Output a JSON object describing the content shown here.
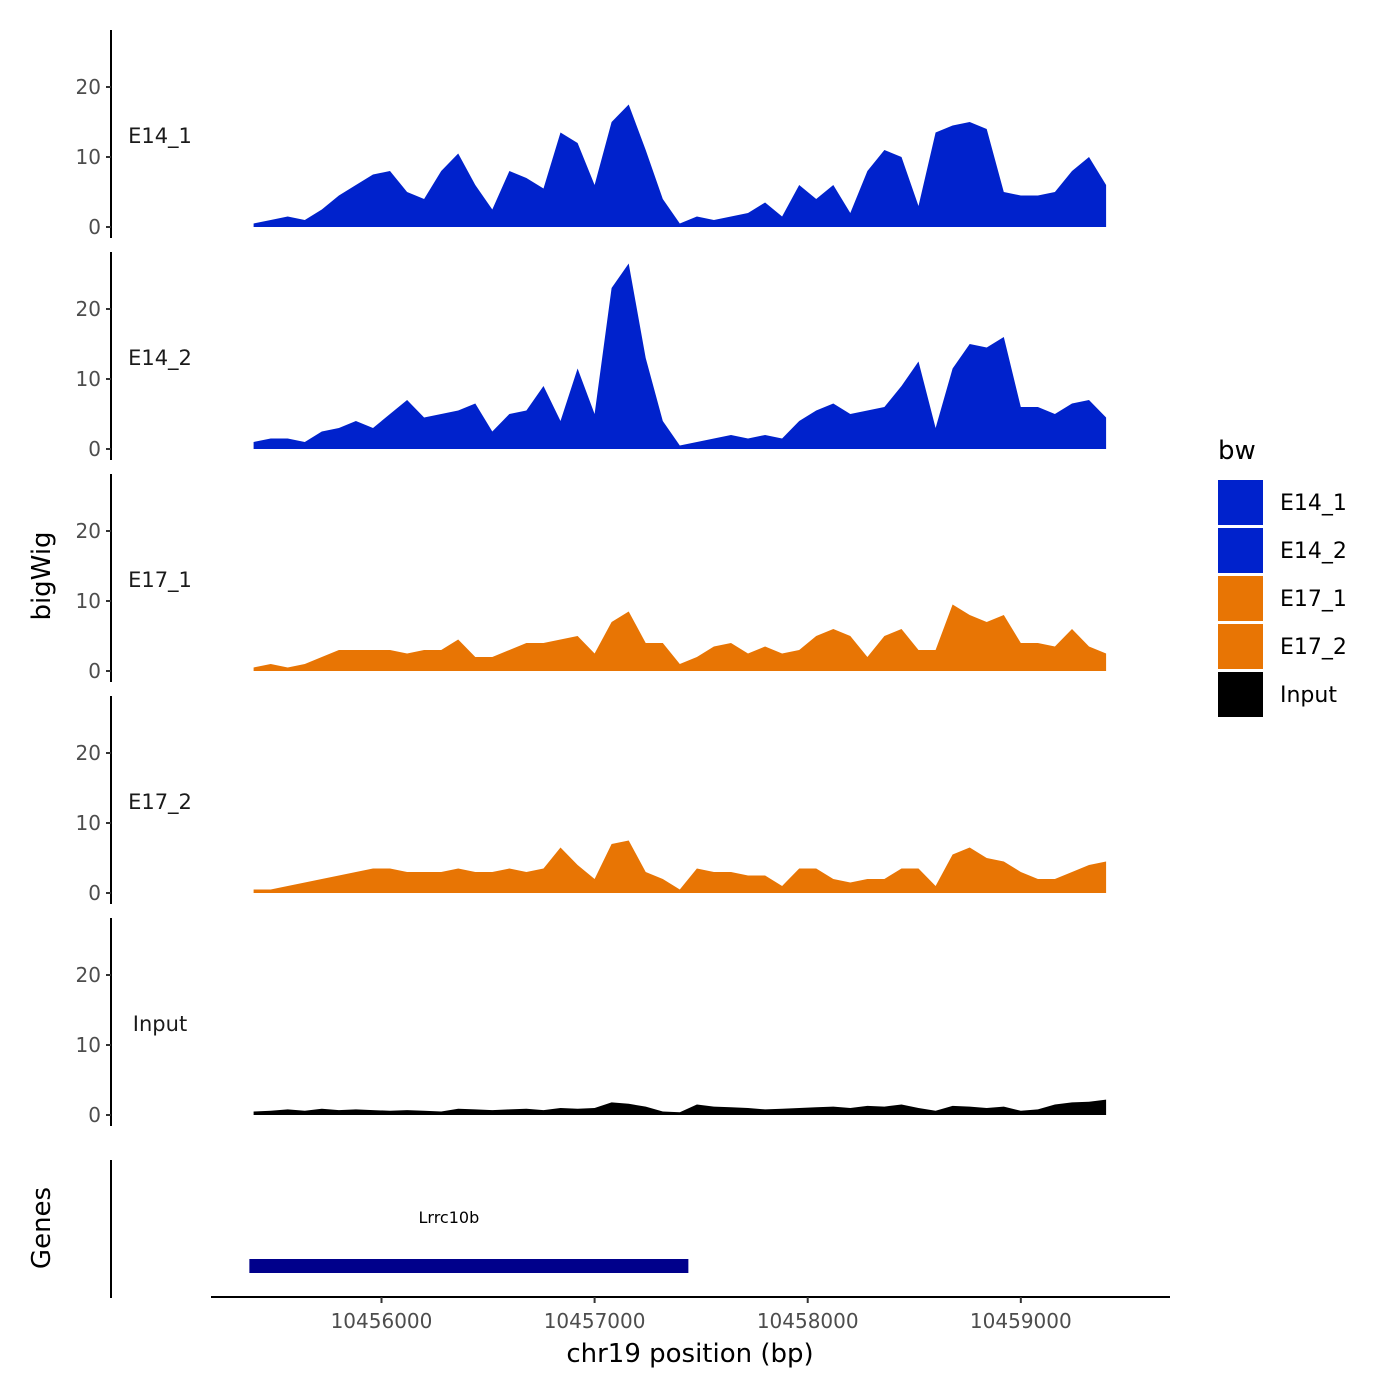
{
  "chart_data": {
    "type": "area",
    "x_range": [
      10455200,
      10459700
    ],
    "x_ticks": [
      10456000,
      10457000,
      10458000,
      10459000
    ],
    "x_tick_labels": [
      "10456000",
      "10457000",
      "10458000",
      "10459000"
    ],
    "xlabel": "chr19 position (bp)",
    "ylabel": "bigWig",
    "genes_label": "Genes",
    "y_range": [
      0,
      29
    ],
    "y_ticks": [
      0,
      10,
      20
    ],
    "y_tick_labels": [
      "0",
      "10",
      "20"
    ],
    "legend_title": "bw",
    "x": [
      10455400,
      10455480,
      10455560,
      10455640,
      10455720,
      10455800,
      10455880,
      10455960,
      10456040,
      10456120,
      10456200,
      10456280,
      10456360,
      10456440,
      10456520,
      10456600,
      10456680,
      10456760,
      10456840,
      10456920,
      10457000,
      10457080,
      10457160,
      10457240,
      10457320,
      10457400,
      10457480,
      10457560,
      10457640,
      10457720,
      10457800,
      10457880,
      10457960,
      10458040,
      10458120,
      10458200,
      10458280,
      10458360,
      10458440,
      10458520,
      10458600,
      10458680,
      10458760,
      10458840,
      10458920,
      10459000,
      10459080,
      10459160,
      10459240,
      10459320,
      10459400
    ],
    "series": [
      {
        "name": "E14_1",
        "color": "#0022CC",
        "values": [
          0.5,
          1,
          1.5,
          1,
          2.5,
          4.5,
          6,
          7.5,
          8,
          5,
          4,
          8,
          10.5,
          6,
          2.5,
          8,
          7,
          5.5,
          13.5,
          12,
          6,
          15,
          17.5,
          11,
          4,
          0.5,
          1.5,
          1,
          1.5,
          2,
          3.5,
          1.5,
          6,
          4,
          6,
          2,
          8,
          11,
          10,
          3,
          13.5,
          14.5,
          15,
          14,
          5,
          4.5,
          4.5,
          5,
          8,
          10,
          6
        ]
      },
      {
        "name": "E14_2",
        "color": "#0022CC",
        "values": [
          1,
          1.5,
          1.5,
          1,
          2.5,
          3,
          4,
          3,
          5,
          7,
          4.5,
          5,
          5.5,
          6.5,
          2.5,
          5,
          5.5,
          9,
          4,
          11.5,
          5,
          23,
          26.5,
          13,
          4,
          0.5,
          1,
          1.5,
          2,
          1.5,
          2,
          1.5,
          4,
          5.5,
          6.5,
          5,
          5.5,
          6,
          9,
          12.5,
          3,
          11.5,
          15,
          14.5,
          16,
          6,
          6,
          5,
          6.5,
          7,
          4.5
        ]
      },
      {
        "name": "E17_1",
        "color": "#E87504",
        "values": [
          0.5,
          1,
          0.5,
          1,
          2,
          3,
          3,
          3,
          3,
          2.5,
          3,
          3,
          4.5,
          2,
          2,
          3,
          4,
          4,
          4.5,
          5,
          2.5,
          7,
          8.5,
          4,
          4,
          1,
          2,
          3.5,
          4,
          2.5,
          3.5,
          2.5,
          3,
          5,
          6,
          5,
          2,
          5,
          6,
          3,
          3,
          9.5,
          8,
          7,
          8,
          4,
          4,
          3.5,
          6,
          3.5,
          2.5
        ]
      },
      {
        "name": "E17_2",
        "color": "#E87504",
        "values": [
          0.5,
          0.5,
          1,
          1.5,
          2,
          2.5,
          3,
          3.5,
          3.5,
          3,
          3,
          3,
          3.5,
          3,
          3,
          3.5,
          3,
          3.5,
          6.5,
          4,
          2,
          7,
          7.5,
          3,
          2,
          0.5,
          3.5,
          3,
          3,
          2.5,
          2.5,
          1,
          3.5,
          3.5,
          2,
          1.5,
          2,
          2,
          3.5,
          3.5,
          1,
          5.5,
          6.5,
          5,
          4.5,
          3,
          2,
          2,
          3,
          4,
          4.5
        ]
      },
      {
        "name": "Input",
        "color": "#000000",
        "values": [
          0.5,
          0.6,
          0.8,
          0.6,
          0.9,
          0.7,
          0.8,
          0.7,
          0.6,
          0.7,
          0.6,
          0.5,
          0.9,
          0.8,
          0.7,
          0.8,
          0.9,
          0.7,
          1,
          0.9,
          1,
          1.8,
          1.6,
          1.2,
          0.5,
          0.4,
          1.5,
          1.2,
          1.1,
          1,
          0.8,
          0.9,
          1,
          1.1,
          1.2,
          1,
          1.3,
          1.2,
          1.5,
          1,
          0.6,
          1.3,
          1.2,
          1,
          1.2,
          0.6,
          0.8,
          1.5,
          1.8,
          1.9,
          2.2
        ]
      }
    ],
    "genes": [
      {
        "name": "Lrrc10b",
        "start": 10455380,
        "end": 10457440,
        "color": "#00008B"
      }
    ]
  }
}
